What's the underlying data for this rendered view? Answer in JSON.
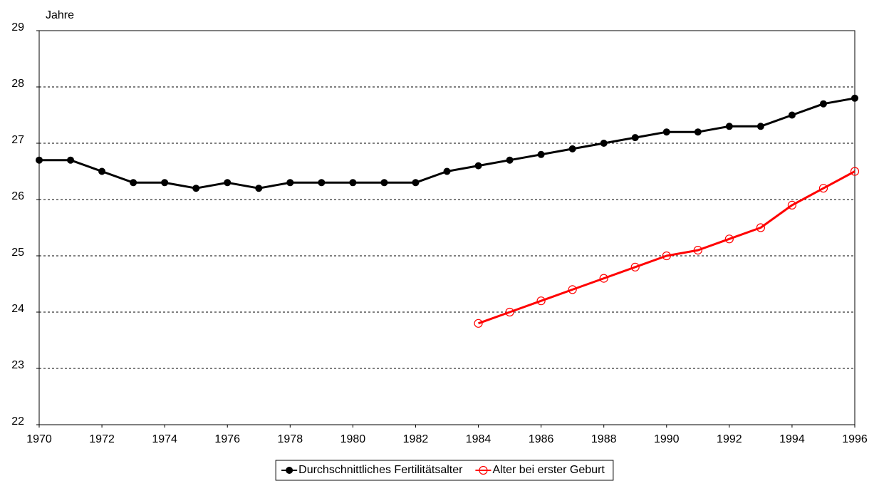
{
  "chart_data": {
    "type": "line",
    "y_label": "Jahre",
    "x": [
      1970,
      1971,
      1972,
      1973,
      1974,
      1975,
      1976,
      1977,
      1978,
      1979,
      1980,
      1981,
      1982,
      1983,
      1984,
      1985,
      1986,
      1987,
      1988,
      1989,
      1990,
      1991,
      1992,
      1993,
      1994,
      1995,
      1996
    ],
    "series": [
      {
        "name": "Durchschnittliches Fertilitätsalter",
        "color": "#000000",
        "marker": "filled",
        "values": [
          26.7,
          26.7,
          26.5,
          26.3,
          26.3,
          26.2,
          26.3,
          26.2,
          26.3,
          26.3,
          26.3,
          26.3,
          26.3,
          26.5,
          26.6,
          26.7,
          26.8,
          26.9,
          27.0,
          27.1,
          27.2,
          27.2,
          27.3,
          27.3,
          27.5,
          27.7,
          27.8
        ]
      },
      {
        "name": "Alter bei erster Geburt",
        "color": "#ff0000",
        "marker": "open",
        "values": [
          null,
          null,
          null,
          null,
          null,
          null,
          null,
          null,
          null,
          null,
          null,
          null,
          null,
          null,
          23.8,
          24.0,
          24.2,
          24.4,
          24.6,
          24.8,
          25.0,
          25.1,
          25.3,
          25.5,
          25.9,
          26.2,
          26.5
        ]
      }
    ],
    "xlim": [
      1970,
      1996
    ],
    "xticks": [
      1970,
      1972,
      1974,
      1976,
      1978,
      1980,
      1982,
      1984,
      1986,
      1988,
      1990,
      1992,
      1994,
      1996
    ],
    "ylim": [
      22,
      29
    ],
    "yticks": [
      22,
      23,
      24,
      25,
      26,
      27,
      28,
      29
    ],
    "grid": true,
    "legend": "bottom"
  }
}
